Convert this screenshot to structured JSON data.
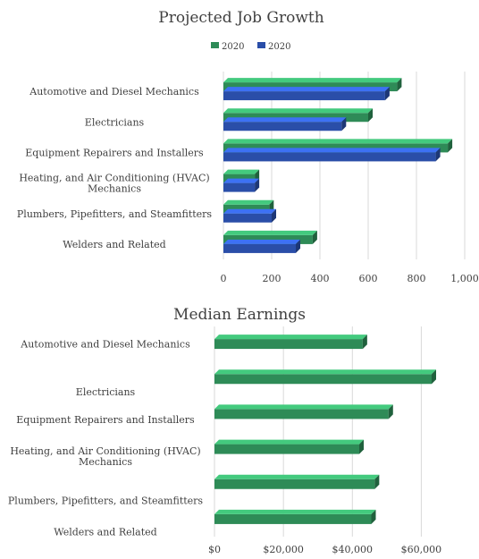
{
  "colors": {
    "green": "#2e8b57",
    "green_top": "#5cc08a",
    "green_dark": "#1d6b40",
    "blue": "#2a4ea8",
    "blue_top": "#5a7fd6",
    "blue_dark": "#1c3580",
    "grid": "#d9d9d9",
    "text": "#404040"
  },
  "chart_data": [
    {
      "type": "bar",
      "orientation": "horizontal",
      "title": "Projected Job Growth",
      "legend_position": "top",
      "categories": [
        "Automotive and Diesel Mechanics",
        "Electricians",
        "Equipment Repairers and Installers",
        "Heating, and Air Conditioning (HVAC) Mechanics",
        "Plumbers, Pipefitters, and Steamfitters",
        "Welders and Related"
      ],
      "series": [
        {
          "name": "2020",
          "color": "#2e8b57",
          "values": [
            720,
            600,
            930,
            130,
            190,
            370
          ]
        },
        {
          "name": "2020",
          "color": "#2a4ea8",
          "values": [
            670,
            490,
            880,
            130,
            200,
            300
          ]
        }
      ],
      "xlim": [
        0,
        1000
      ],
      "xticks": [
        0,
        200,
        400,
        600,
        800,
        1000
      ],
      "xtick_labels": [
        "0",
        "200",
        "400",
        "600",
        "800",
        "1,000"
      ],
      "grid": true
    },
    {
      "type": "bar",
      "orientation": "horizontal",
      "title": "Median Earnings",
      "categories": [
        "Automotive and Diesel Mechanics",
        "Electricians",
        "Equipment Repairers and Installers",
        "Heating, and Air Conditioning (HVAC) Mechanics",
        "Plumbers, Pipefitters, and Steamfitters",
        "Welders and Related"
      ],
      "series": [
        {
          "color": "#2e8b57",
          "values": [
            43000,
            63000,
            50500,
            42000,
            46500,
            45500
          ]
        }
      ],
      "xlim": [
        0,
        70000
      ],
      "xticks": [
        0,
        20000,
        40000,
        60000
      ],
      "xtick_labels": [
        "$0",
        "$20,000",
        "$40,000",
        "$60,000"
      ],
      "grid": true
    }
  ]
}
